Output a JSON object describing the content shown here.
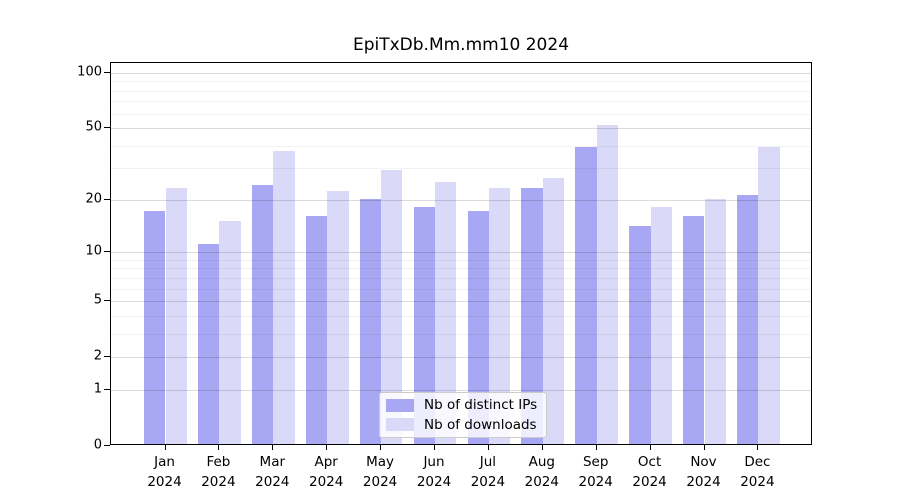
{
  "chart_data": {
    "type": "bar",
    "title": "EpiTxDb.Mm.mm10 2024",
    "categories": [
      "Jan",
      "Feb",
      "Mar",
      "Apr",
      "May",
      "Jun",
      "Jul",
      "Aug",
      "Sep",
      "Oct",
      "Nov",
      "Dec"
    ],
    "year_label": "2024",
    "series": [
      {
        "name": "Nb of distinct IPs",
        "color": "#a7a7f3",
        "values": [
          17,
          11,
          24,
          16,
          20,
          18,
          17,
          23,
          39,
          14,
          16,
          21
        ]
      },
      {
        "name": "Nb of downloads",
        "color": "#dadaf8",
        "values": [
          23,
          15,
          37,
          22,
          29,
          25,
          23,
          26,
          51,
          18,
          20,
          39
        ]
      }
    ],
    "xlabel": "",
    "ylabel": "",
    "yscale": "log1p",
    "y_ticks": [
      0,
      1,
      2,
      5,
      10,
      20,
      50,
      100
    ],
    "y_minor_ticks": [
      3,
      4,
      6,
      7,
      8,
      9,
      30,
      40,
      60,
      70,
      80,
      90
    ],
    "ylim": [
      0,
      113
    ],
    "grid": true,
    "legend_position": "inside-bottom-center",
    "background_color": "#ffffff",
    "axis_color": "#000000"
  }
}
